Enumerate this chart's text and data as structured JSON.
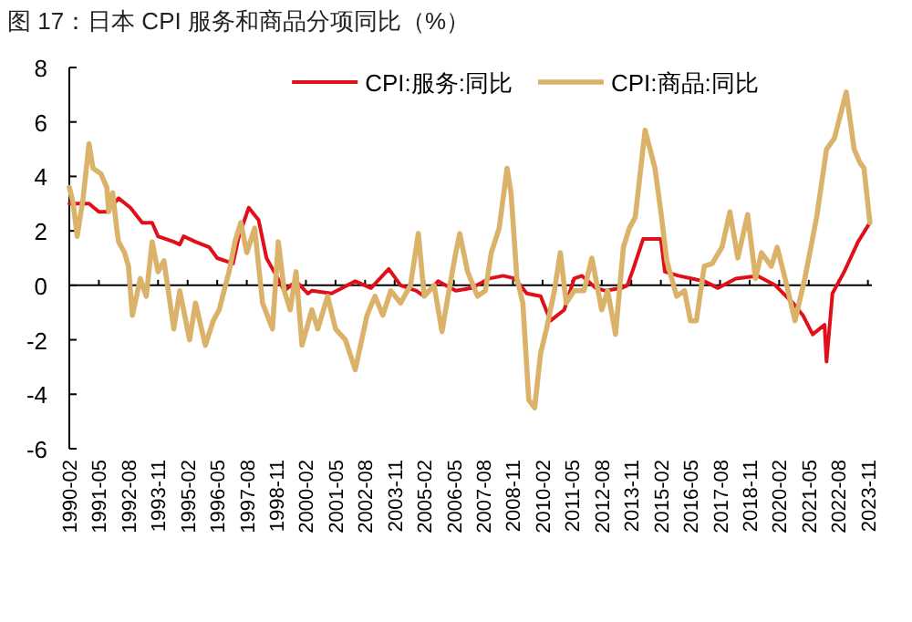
{
  "chart_data": {
    "type": "line",
    "title": "图 17：日本 CPI 服务和商品分项同比（%）",
    "xlim": [
      "1990-02",
      "2024-01"
    ],
    "ylim": [
      -6,
      8
    ],
    "yticks": [
      -6,
      -4,
      -2,
      0,
      2,
      4,
      6,
      8
    ],
    "xticks": [
      "1990-02",
      "1991-05",
      "1992-08",
      "1993-11",
      "1995-02",
      "1996-05",
      "1997-08",
      "1998-11",
      "2000-02",
      "2001-05",
      "2002-08",
      "2003-11",
      "2005-02",
      "2006-05",
      "2007-08",
      "2008-11",
      "2010-02",
      "2011-05",
      "2012-08",
      "2013-11",
      "2015-02",
      "2016-05",
      "2017-08",
      "2018-11",
      "2020-02",
      "2021-05",
      "2022-08",
      "2023-11"
    ],
    "legend": "top",
    "marker": "none",
    "line_style": "solid",
    "series": [
      {
        "name": "CPI:服务:同比",
        "color": "#e0101a",
        "x": [
          "1990-02",
          "1990-12",
          "1991-05",
          "1991-09",
          "1992-03",
          "1992-09",
          "1993-03",
          "1993-08",
          "1993-11",
          "1994-07",
          "1994-10",
          "1994-12",
          "1995-06",
          "1996-01",
          "1996-05",
          "1997-01",
          "1997-04",
          "1997-09",
          "1998-02",
          "1998-06",
          "1998-11",
          "1999-03",
          "1999-09",
          "2000-03",
          "2000-05",
          "2001-03",
          "2002-03",
          "2002-11",
          "2003-08",
          "2004-02",
          "2004-10",
          "2005-02",
          "2005-09",
          "2006-06",
          "2007-02",
          "2007-11",
          "2008-06",
          "2008-12",
          "2009-06",
          "2010-01",
          "2010-06",
          "2011-01",
          "2011-06",
          "2011-10",
          "2012-05",
          "2012-10",
          "2013-06",
          "2013-09",
          "2013-12",
          "2014-05",
          "2015-02",
          "2015-04",
          "2015-11",
          "2016-12",
          "2017-07",
          "2018-04",
          "2019-03",
          "2019-12",
          "2020-09",
          "2021-02",
          "2021-07",
          "2022-01",
          "2022-02",
          "2022-05",
          "2022-11",
          "2023-06",
          "2023-12"
        ],
        "values": [
          3.0,
          3.0,
          2.7,
          2.7,
          3.2,
          2.85,
          2.3,
          2.3,
          1.8,
          1.6,
          1.5,
          1.8,
          1.6,
          1.4,
          1.0,
          0.8,
          1.8,
          2.85,
          2.4,
          1.0,
          0.35,
          -0.2,
          0.15,
          -0.3,
          -0.2,
          -0.3,
          0.15,
          -0.1,
          0.6,
          0,
          -0.2,
          -0.4,
          0.15,
          -0.2,
          -0.1,
          0.25,
          0.35,
          0.25,
          -0.3,
          -0.4,
          -1.3,
          -0.9,
          0.25,
          0.35,
          -0.1,
          -0.2,
          -0.1,
          0,
          0.6,
          1.7,
          1.7,
          0.5,
          0.35,
          0.15,
          -0.1,
          0.25,
          0.35,
          0,
          -0.65,
          -1.1,
          -1.8,
          -1.45,
          -2.8,
          -0.3,
          0.5,
          1.6,
          2.3
        ]
      },
      {
        "name": "CPI:商品:同比",
        "color": "#dbb26a",
        "x": [
          "1990-02",
          "1990-04",
          "1990-06",
          "1990-09",
          "1990-12",
          "1991-02",
          "1991-06",
          "1991-09",
          "1991-10",
          "1991-12",
          "1992-02",
          "1992-03",
          "1992-06",
          "1992-08",
          "1992-10",
          "1993-02",
          "1993-05",
          "1993-08",
          "1993-11",
          "1994-02",
          "1994-07",
          "1994-10",
          "1995-03",
          "1995-06",
          "1995-11",
          "1996-03",
          "1996-06",
          "1996-11",
          "1997-02",
          "1997-05",
          "1997-08",
          "1997-12",
          "1998-04",
          "1998-09",
          "1998-12",
          "1999-03",
          "1999-06",
          "1999-09",
          "1999-12",
          "2000-05",
          "2000-08",
          "2001-01",
          "2001-05",
          "2001-10",
          "2002-03",
          "2002-09",
          "2003-01",
          "2003-05",
          "2003-09",
          "2004-02",
          "2004-07",
          "2004-11",
          "2005-02",
          "2005-07",
          "2005-11",
          "2006-03",
          "2006-06",
          "2006-08",
          "2006-12",
          "2007-05",
          "2007-09",
          "2007-12",
          "2008-04",
          "2008-08",
          "2008-10",
          "2009-01",
          "2009-04",
          "2009-07",
          "2009-10",
          "2010-01",
          "2010-04",
          "2010-08",
          "2010-11",
          "2011-02",
          "2011-06",
          "2011-11",
          "2012-03",
          "2012-08",
          "2012-11",
          "2013-03",
          "2013-07",
          "2013-10",
          "2014-01",
          "2014-06",
          "2014-11",
          "2015-02",
          "2015-05",
          "2015-10",
          "2016-02",
          "2016-05",
          "2016-08",
          "2016-12",
          "2017-04",
          "2017-09",
          "2018-01",
          "2018-05",
          "2018-10",
          "2019-02",
          "2019-05",
          "2019-10",
          "2020-01",
          "2020-05",
          "2020-10",
          "2021-03",
          "2021-09",
          "2022-02",
          "2022-06",
          "2022-12",
          "2023-04",
          "2023-07",
          "2023-09",
          "2023-12"
        ],
        "values": [
          3.6,
          3.0,
          1.8,
          3.2,
          5.2,
          4.3,
          4.1,
          3.6,
          2.7,
          3.4,
          2.1,
          1.6,
          1.2,
          0.7,
          -1.1,
          0.25,
          -0.4,
          1.6,
          0.5,
          0.9,
          -1.6,
          -0.2,
          -2.0,
          -0.65,
          -2.2,
          -1.3,
          -0.9,
          0.5,
          1.6,
          2.3,
          1.2,
          2.1,
          -0.65,
          -1.6,
          1.6,
          -0.2,
          -0.9,
          0.5,
          -2.2,
          -0.9,
          -1.6,
          -0.4,
          -1.6,
          -2.0,
          -3.1,
          -1.1,
          -0.4,
          -1.1,
          -0.2,
          -0.65,
          0,
          1.9,
          -0.4,
          0,
          -1.7,
          0,
          1.2,
          1.9,
          0.5,
          -0.4,
          -0.2,
          1.2,
          2.1,
          4.3,
          3.4,
          0.25,
          -0.65,
          -4.2,
          -4.5,
          -2.5,
          -1.6,
          -0.2,
          1.2,
          -0.65,
          -0.2,
          -0.2,
          1.0,
          -0.9,
          -0.2,
          -1.8,
          1.4,
          2.1,
          2.5,
          5.7,
          4.3,
          2.7,
          0.9,
          -0.4,
          -0.2,
          -1.3,
          -1.3,
          0.7,
          0.8,
          1.4,
          2.7,
          1.0,
          2.6,
          0.25,
          1.2,
          0.7,
          1.4,
          0.25,
          -1.3,
          0.25,
          2.5,
          5.0,
          5.4,
          7.1,
          5.0,
          4.5,
          4.3,
          2.3
        ]
      }
    ]
  }
}
